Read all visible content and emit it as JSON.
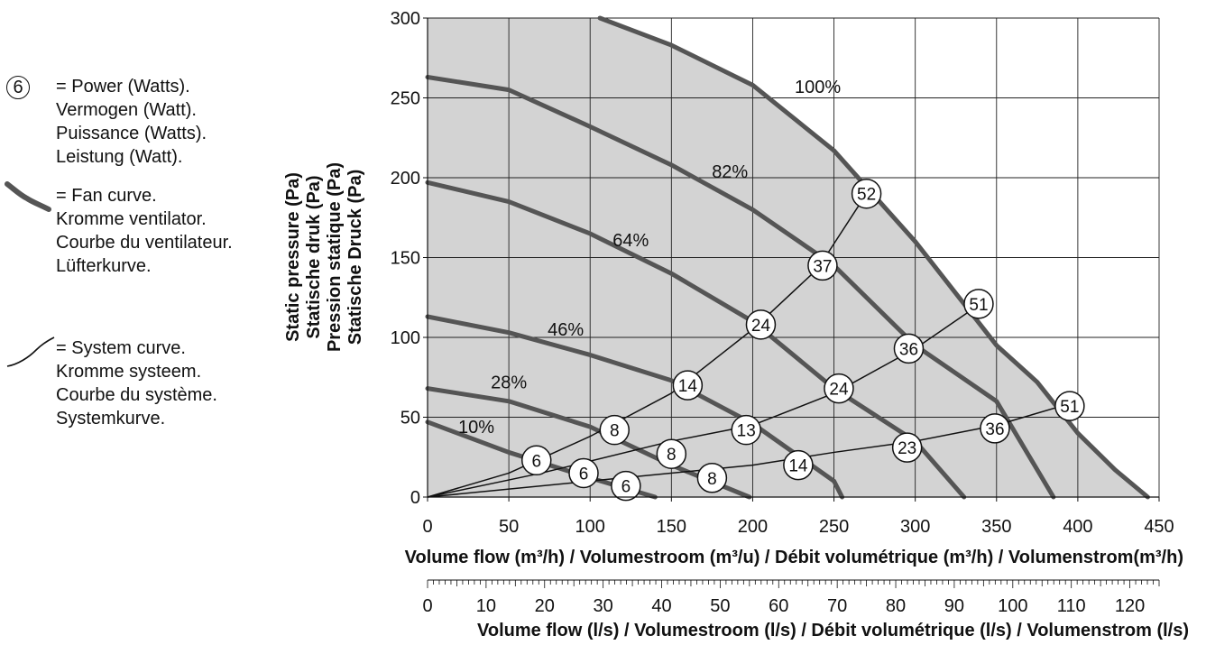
{
  "legend": {
    "power_marker_value": "6",
    "power": [
      "= Power (Watts).",
      "Vermogen (Watt).",
      "Puissance (Watts).",
      "Leistung (Watt)."
    ],
    "fan": [
      "= Fan curve.",
      "Kromme ventilator.",
      "Courbe du ventilateur.",
      "Lüfterkurve."
    ],
    "system": [
      "= System curve.",
      "Kromme systeem.",
      "Courbe du système.",
      "Systemkurve."
    ]
  },
  "chart_data": {
    "type": "line",
    "ylabel": [
      "Static pressure (Pa)",
      "Statische druk (Pa)",
      "Pression statique (Pa)",
      "Statische Druck (Pa)"
    ],
    "xlabel": "Volume flow (m³/h) / Volumestroom (m³/u) / Débit volumétrique (m³/h) / Volumenstrom(m³/h)",
    "xlabel2": "Volume flow (l/s) / Volumestroom (l/s) / Débit volumétrique (l/s) / Volumenstrom (l/s)",
    "xlim": [
      0,
      450
    ],
    "ylim": [
      0,
      300
    ],
    "xticks": [
      0,
      50,
      100,
      150,
      200,
      250,
      300,
      350,
      400,
      450
    ],
    "yticks": [
      0,
      50,
      100,
      150,
      200,
      250,
      300
    ],
    "x2ticks": [
      0,
      10,
      20,
      30,
      40,
      50,
      60,
      70,
      80,
      90,
      100,
      110,
      120
    ],
    "x2lim": [
      0,
      125
    ],
    "grid": true,
    "colors": {
      "fan_curve": "#555555",
      "operating_area": "#d3d3d3",
      "system_curve": "#111111"
    },
    "fan_curves": [
      {
        "name": "100%",
        "label_at": [
          240,
          253
        ],
        "points": [
          [
            106,
            300
          ],
          [
            150,
            283
          ],
          [
            200,
            258
          ],
          [
            250,
            217
          ],
          [
            300,
            160
          ],
          [
            350,
            95
          ],
          [
            375,
            72
          ],
          [
            400,
            40
          ],
          [
            423,
            17
          ],
          [
            443,
            0
          ]
        ]
      },
      {
        "name": "82%",
        "label_at": [
          186,
          200
        ],
        "points": [
          [
            0,
            263
          ],
          [
            50,
            255
          ],
          [
            100,
            232
          ],
          [
            150,
            208
          ],
          [
            200,
            180
          ],
          [
            250,
            145
          ],
          [
            300,
            95
          ],
          [
            350,
            60
          ],
          [
            385,
            0
          ]
        ]
      },
      {
        "name": "64%",
        "label_at": [
          125,
          157
        ],
        "points": [
          [
            0,
            197
          ],
          [
            50,
            185
          ],
          [
            100,
            165
          ],
          [
            150,
            140
          ],
          [
            200,
            110
          ],
          [
            250,
            68
          ],
          [
            300,
            35
          ],
          [
            330,
            0
          ]
        ]
      },
      {
        "name": "46%",
        "label_at": [
          85,
          101
        ],
        "points": [
          [
            0,
            113
          ],
          [
            50,
            103
          ],
          [
            100,
            89
          ],
          [
            150,
            73
          ],
          [
            200,
            46
          ],
          [
            250,
            10
          ],
          [
            255,
            0
          ]
        ]
      },
      {
        "name": "28%",
        "label_at": [
          50,
          68
        ],
        "points": [
          [
            0,
            68
          ],
          [
            50,
            60
          ],
          [
            100,
            44
          ],
          [
            150,
            20
          ],
          [
            198,
            0
          ]
        ]
      },
      {
        "name": "10%",
        "label_at": [
          30,
          40
        ],
        "points": [
          [
            0,
            47
          ],
          [
            50,
            28
          ],
          [
            100,
            12
          ],
          [
            140,
            0
          ]
        ]
      }
    ],
    "system_curves": [
      {
        "points": [
          [
            0,
            0
          ],
          [
            50,
            15
          ],
          [
            100,
            38
          ],
          [
            150,
            65
          ],
          [
            200,
            105
          ],
          [
            240,
            143
          ],
          [
            270,
            190
          ]
        ]
      },
      {
        "points": [
          [
            0,
            0
          ],
          [
            70,
            15
          ],
          [
            150,
            35
          ],
          [
            200,
            45
          ],
          [
            250,
            65
          ],
          [
            300,
            93
          ],
          [
            340,
            121
          ]
        ]
      },
      {
        "points": [
          [
            0,
            0
          ],
          [
            100,
            10
          ],
          [
            200,
            20
          ],
          [
            250,
            28
          ],
          [
            300,
            35
          ],
          [
            350,
            45
          ],
          [
            400,
            60
          ]
        ]
      }
    ],
    "power_markers": [
      {
        "x": 270,
        "y": 190,
        "label": "52"
      },
      {
        "x": 243,
        "y": 145,
        "label": "37"
      },
      {
        "x": 205,
        "y": 108,
        "label": "24"
      },
      {
        "x": 160,
        "y": 70,
        "label": "14"
      },
      {
        "x": 115,
        "y": 42,
        "label": "8"
      },
      {
        "x": 67,
        "y": 23,
        "label": "6"
      },
      {
        "x": 339,
        "y": 121,
        "label": "51"
      },
      {
        "x": 296,
        "y": 93,
        "label": "36"
      },
      {
        "x": 253,
        "y": 68,
        "label": "24"
      },
      {
        "x": 196,
        "y": 42,
        "label": "13"
      },
      {
        "x": 150,
        "y": 27,
        "label": "8"
      },
      {
        "x": 96,
        "y": 15,
        "label": "6"
      },
      {
        "x": 395,
        "y": 57,
        "label": "51"
      },
      {
        "x": 349,
        "y": 43,
        "label": "36"
      },
      {
        "x": 295,
        "y": 31,
        "label": "23"
      },
      {
        "x": 228,
        "y": 20,
        "label": "14"
      },
      {
        "x": 175,
        "y": 12,
        "label": "8"
      },
      {
        "x": 122,
        "y": 7,
        "label": "6"
      }
    ]
  }
}
